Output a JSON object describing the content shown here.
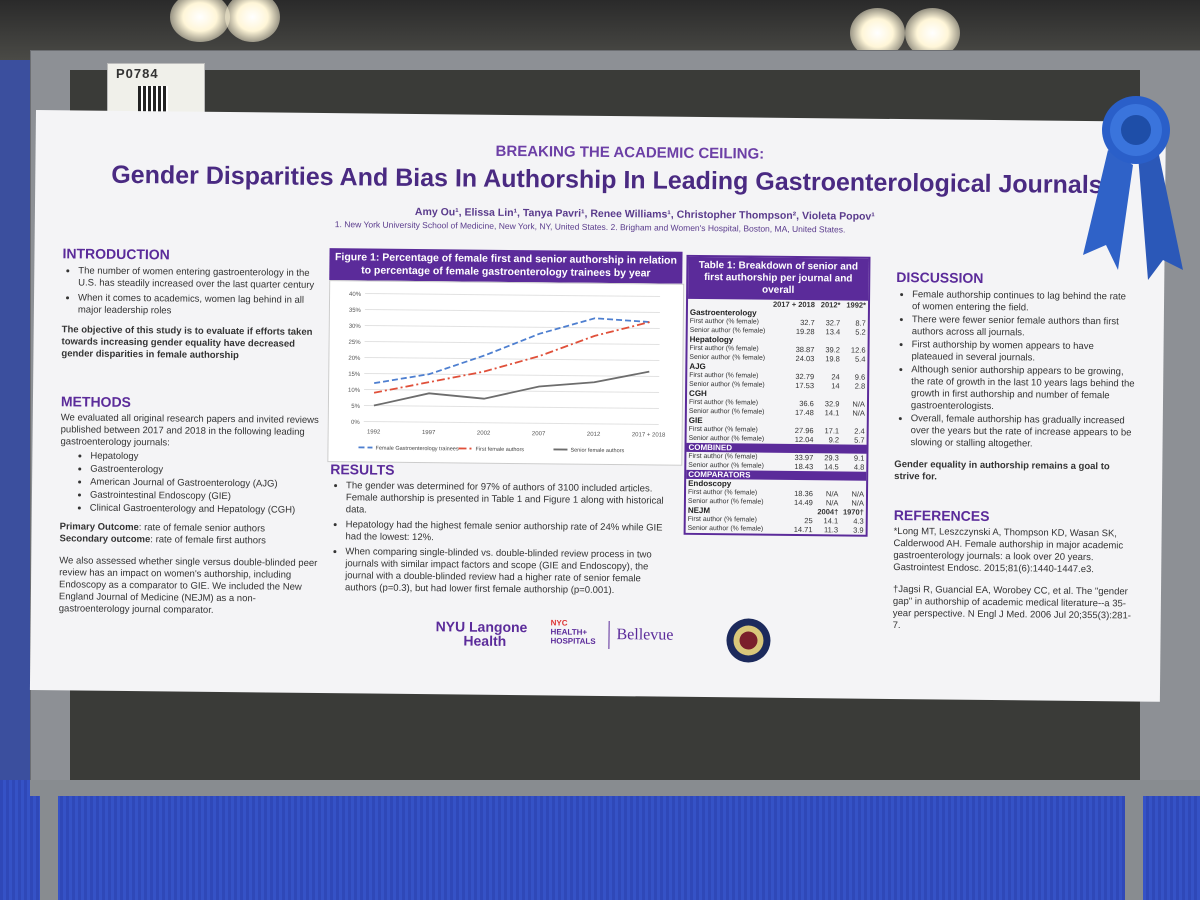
{
  "booth_tag": "P0784",
  "poster": {
    "subtitle": "BREAKING THE ACADEMIC CEILING:",
    "title": "Gender Disparities And Bias In Authorship In Leading Gastroenterological Journals",
    "authors": "Amy Ou¹, Elissa Lin¹, Tanya Pavri¹, Renee Williams¹, Christopher Thompson², Violeta Popov¹",
    "affiliations": "1. New York University School of Medicine, New York, NY, United States. 2. Brigham and Women's Hospital, Boston, MA, United States.",
    "introduction": {
      "heading": "INTRODUCTION",
      "bullets": [
        "The number of women entering gastroenterology in the U.S. has steadily increased over the last quarter century",
        "When it comes to academics, women lag behind in all major leadership roles"
      ],
      "objective": "The objective of this study is to evaluate if efforts taken towards increasing gender equality have decreased gender disparities in female authorship"
    },
    "methods": {
      "heading": "METHODS",
      "text": "We evaluated all original research papers and invited reviews published between 2017 and 2018 in the following leading gastroenterology journals:",
      "journals": [
        "Hepatology",
        "Gastroenterology",
        "American Journal of Gastroenterology (AJG)",
        "Gastrointestinal Endoscopy (GIE)",
        "Clinical Gastroenterology and Hepatology (CGH)"
      ],
      "primary_label": "Primary Outcome",
      "primary_text": ": rate of female senior authors",
      "secondary_label": "Secondary outcome",
      "secondary_text": ": rate of female first authors",
      "extra": "We also assessed whether single versus double-blinded peer review has an impact on women's authorship, including Endoscopy as a comparator to GIE. We included the New England Journal of Medicine (NEJM) as a non-gastroenterology journal comparator."
    },
    "figure": {
      "heading": "Figure 1: Percentage of female first and senior authorship in relation to percentage of female gastroenterology trainees by year"
    },
    "results": {
      "heading": "RESULTS",
      "bullets": [
        "The gender was determined for 97% of authors of 3100 included articles. Female authorship is presented in Table 1 and Figure 1 along with historical data.",
        "Hepatology had the highest female senior authorship rate of 24% while GIE had the lowest: 12%.",
        "When comparing single-blinded vs. double-blinded review process in two journals with similar impact factors and scope (GIE and Endoscopy), the journal with a double-blinded review had a higher rate of senior female authors (p=0.3), but had lower first female authorship (p=0.001)."
      ]
    },
    "table": {
      "heading": "Table 1: Breakdown of senior and first authorship per journal and overall",
      "columns": [
        "2017 + 2018",
        "2012*",
        "1992*"
      ],
      "first_label": "First author (% female)",
      "senior_label": "Senior author (% female)",
      "groups": [
        {
          "name": "Gastroenterology",
          "first": [
            "32.7",
            "32.7",
            "8.7"
          ],
          "senior": [
            "19.28",
            "13.4",
            "5.2"
          ]
        },
        {
          "name": "Hepatology",
          "first": [
            "38.87",
            "39.2",
            "12.6"
          ],
          "senior": [
            "24.03",
            "19.8",
            "5.4"
          ]
        },
        {
          "name": "AJG",
          "first": [
            "32.79",
            "24",
            "9.6"
          ],
          "senior": [
            "17.53",
            "14",
            "2.8"
          ]
        },
        {
          "name": "CGH",
          "first": [
            "36.6",
            "32.9",
            "N/A"
          ],
          "senior": [
            "17.48",
            "14.1",
            "N/A"
          ]
        },
        {
          "name": "GIE",
          "first": [
            "27.96",
            "17.1",
            "2.4"
          ],
          "senior": [
            "12.04",
            "9.2",
            "5.7"
          ]
        },
        {
          "name": "COMBINED",
          "first": [
            "33.97",
            "29.3",
            "9.1"
          ],
          "senior": [
            "18.43",
            "14.5",
            "4.8"
          ]
        }
      ],
      "comparators_label": "COMPARATORS",
      "endoscopy": {
        "name": "Endoscopy",
        "first": [
          "18.36",
          "N/A",
          "N/A"
        ],
        "senior": [
          "14.49",
          "N/A",
          "N/A"
        ]
      },
      "nejm": {
        "name": "NEJM",
        "years": [
          "2004†",
          "1970†"
        ],
        "first": [
          "25",
          "14.1",
          "4.3"
        ],
        "senior": [
          "14.71",
          "11.3",
          "3.9"
        ]
      }
    },
    "discussion": {
      "heading": "DISCUSSION",
      "bullets": [
        "Female authorship continues to lag behind the rate of women entering the field.",
        "There were fewer senior female authors than first authors across all journals.",
        "First authorship by women appears to have plateaued in several journals.",
        "Although senior authorship appears to be growing, the rate of growth in the last 10 years lags behind the growth in first authorship and number of female gastroenterologists.",
        "Overall, female authorship has gradually increased over the years but the rate of increase appears to be slowing or stalling altogether."
      ],
      "conclusion": "Gender equality in authorship remains a goal to strive for."
    },
    "references": {
      "heading": "REFERENCES",
      "items": [
        "*Long MT, Leszczynski A, Thompson KD, Wasan SK, Calderwood AH. Female authorship in major academic gastroenterology journals: a look over 20 years. Gastrointest Endosc. 2015;81(6):1440-1447.e3.",
        "†Jagsi R, Guancial EA, Worobey CC, et al. The \"gender gap\" in authorship of academic medical literature--a 35-year perspective. N Engl J Med. 2006 Jul 20;355(3):281-7."
      ]
    },
    "logos": {
      "nyu_line1": "NYU Langone",
      "nyu_line2": "Health",
      "nyc_small": "NYC",
      "health_line1": "HEALTH+",
      "health_line2": "HOSPITALS",
      "bellevue": "Bellevue"
    }
  },
  "chart_data": {
    "type": "line",
    "categories": [
      "1992",
      "1997",
      "2002",
      "2007",
      "2012",
      "2017 + 2018"
    ],
    "ylim": [
      0,
      40
    ],
    "yticks": [
      "0%",
      "5%",
      "10%",
      "15%",
      "20%",
      "25%",
      "30%",
      "35%",
      "40%"
    ],
    "series": [
      {
        "name": "Female Gastroenterology trainees",
        "values": [
          12,
          15,
          21,
          28,
          33,
          32
        ],
        "color": "#4e7fd0",
        "dash": "6,3"
      },
      {
        "name": "First female authors",
        "values": [
          9,
          12.5,
          16,
          21,
          27.5,
          32
        ],
        "color": "#e0503a",
        "dash": "8,3,2,3"
      },
      {
        "name": "Senior female authors",
        "values": [
          5,
          9,
          7.5,
          11.5,
          13,
          16.5
        ],
        "color": "#6d6d6d",
        "dash": ""
      }
    ]
  }
}
